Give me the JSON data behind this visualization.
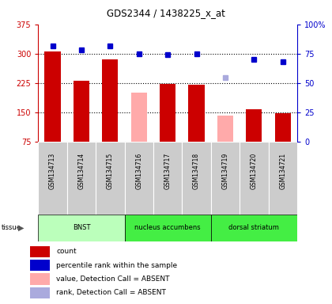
{
  "title": "GDS2344 / 1438225_x_at",
  "samples": [
    "GSM134713",
    "GSM134714",
    "GSM134715",
    "GSM134716",
    "GSM134717",
    "GSM134718",
    "GSM134719",
    "GSM134720",
    "GSM134721"
  ],
  "bar_values": [
    305,
    230,
    285,
    null,
    222,
    220,
    null,
    158,
    147
  ],
  "bar_colors": [
    "#cc0000",
    "#cc0000",
    "#cc0000",
    null,
    "#cc0000",
    "#cc0000",
    null,
    "#cc0000",
    "#cc0000"
  ],
  "absent_bar_values": [
    null,
    null,
    null,
    200,
    null,
    null,
    142,
    null,
    null
  ],
  "absent_bar_color": "#ffaaaa",
  "rank_values_left_scale": [
    320,
    310,
    320,
    300,
    297,
    300,
    null,
    285,
    280
  ],
  "rank_colors": [
    "#0000cc",
    "#0000cc",
    "#0000cc",
    "#0000cc",
    "#0000cc",
    "#0000cc",
    null,
    "#0000cc",
    "#0000cc"
  ],
  "absent_rank_values_left_scale": [
    null,
    null,
    null,
    null,
    null,
    null,
    238,
    null,
    null
  ],
  "absent_rank_color": "#aaaadd",
  "tissue_groups": [
    {
      "label": "BNST",
      "start": 0,
      "end": 3,
      "color": "#bbffbb"
    },
    {
      "label": "nucleus accumbens",
      "start": 3,
      "end": 6,
      "color": "#44ee44"
    },
    {
      "label": "dorsal striatum",
      "start": 6,
      "end": 9,
      "color": "#44ee44"
    }
  ],
  "ylim_left": [
    75,
    375
  ],
  "ylim_right": [
    0,
    100
  ],
  "yticks_left": [
    75,
    150,
    225,
    300,
    375
  ],
  "yticks_right": [
    0,
    25,
    50,
    75,
    100
  ],
  "ytick_labels_right": [
    "0",
    "25",
    "50",
    "75",
    "100%"
  ],
  "bar_width": 0.55,
  "grid_lines": [
    150,
    225,
    300
  ],
  "bg_color": "#ffffff",
  "plot_bg": "#ffffff",
  "axis_color_left": "#cc0000",
  "axis_color_right": "#0000cc",
  "sample_box_color": "#cccccc",
  "legend_items": [
    {
      "color": "#cc0000",
      "label": "count"
    },
    {
      "color": "#0000cc",
      "label": "percentile rank within the sample"
    },
    {
      "color": "#ffaaaa",
      "label": "value, Detection Call = ABSENT"
    },
    {
      "color": "#aaaadd",
      "label": "rank, Detection Call = ABSENT"
    }
  ]
}
